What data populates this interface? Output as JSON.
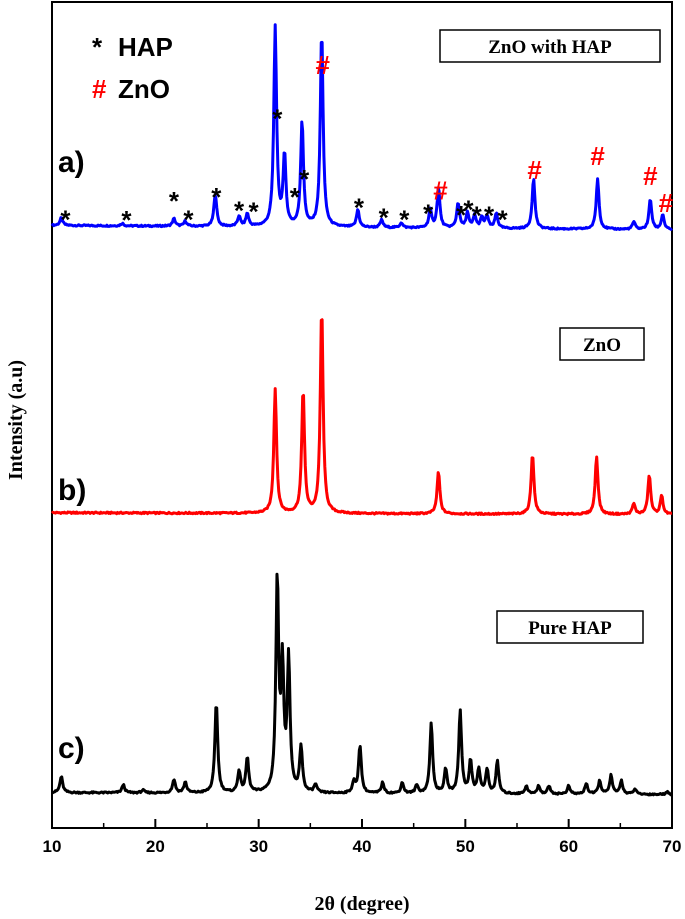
{
  "chart_data": {
    "type": "line",
    "title": "",
    "xlabel": "2θ (degree)",
    "ylabel": "Intensity (a.u)",
    "xlim": [
      10,
      70
    ],
    "x_ticks": [
      10,
      20,
      30,
      40,
      50,
      60,
      70
    ],
    "grid": false,
    "legend": {
      "placement": "top-left",
      "entries": [
        {
          "symbol": "*",
          "label": "HAP",
          "color": "#000000"
        },
        {
          "symbol": "#",
          "label": "ZnO",
          "color": "#ff0000"
        }
      ]
    },
    "series": [
      {
        "name": "ZnO with HAP",
        "panel_label": "a)",
        "color": "#0000ff",
        "baseline": 0.05,
        "peaks": [
          {
            "x": 10.9,
            "h": 0.03
          },
          {
            "x": 16.8,
            "h": 0.01
          },
          {
            "x": 21.8,
            "h": 0.03
          },
          {
            "x": 22.9,
            "h": 0.02
          },
          {
            "x": 25.8,
            "h": 0.13
          },
          {
            "x": 28.1,
            "h": 0.04
          },
          {
            "x": 28.9,
            "h": 0.05
          },
          {
            "x": 31.6,
            "h": 0.79
          },
          {
            "x": 32.5,
            "h": 0.28
          },
          {
            "x": 34.2,
            "h": 0.42
          },
          {
            "x": 36.1,
            "h": 0.78
          },
          {
            "x": 39.6,
            "h": 0.07
          },
          {
            "x": 41.9,
            "h": 0.03
          },
          {
            "x": 43.8,
            "h": 0.02
          },
          {
            "x": 46.6,
            "h": 0.07
          },
          {
            "x": 47.4,
            "h": 0.16
          },
          {
            "x": 49.3,
            "h": 0.1
          },
          {
            "x": 50.2,
            "h": 0.06
          },
          {
            "x": 50.9,
            "h": 0.05
          },
          {
            "x": 51.6,
            "h": 0.04
          },
          {
            "x": 52.1,
            "h": 0.05
          },
          {
            "x": 53.0,
            "h": 0.06
          },
          {
            "x": 56.6,
            "h": 0.2
          },
          {
            "x": 62.8,
            "h": 0.2
          },
          {
            "x": 66.3,
            "h": 0.03
          },
          {
            "x": 67.9,
            "h": 0.12
          },
          {
            "x": 69.1,
            "h": 0.06
          }
        ],
        "box_label": "ZnO with HAP",
        "markers": [
          {
            "x": 11.3,
            "symbol": "*"
          },
          {
            "x": 17.2,
            "symbol": "*"
          },
          {
            "x": 21.8,
            "symbol": "*"
          },
          {
            "x": 23.2,
            "symbol": "*"
          },
          {
            "x": 25.9,
            "symbol": "*"
          },
          {
            "x": 28.1,
            "symbol": "*"
          },
          {
            "x": 29.5,
            "symbol": "*"
          },
          {
            "x": 31.8,
            "symbol": "*"
          },
          {
            "x": 33.5,
            "symbol": "*"
          },
          {
            "x": 34.4,
            "symbol": "*"
          },
          {
            "x": 36.2,
            "symbol": "#"
          },
          {
            "x": 39.7,
            "symbol": "*"
          },
          {
            "x": 42.1,
            "symbol": "*"
          },
          {
            "x": 44.1,
            "symbol": "*"
          },
          {
            "x": 46.4,
            "symbol": "*"
          },
          {
            "x": 47.6,
            "symbol": "#"
          },
          {
            "x": 49.6,
            "symbol": "*"
          },
          {
            "x": 50.3,
            "symbol": "*"
          },
          {
            "x": 51.1,
            "symbol": "*"
          },
          {
            "x": 52.3,
            "symbol": "*"
          },
          {
            "x": 53.6,
            "symbol": "*"
          },
          {
            "x": 56.7,
            "symbol": "#"
          },
          {
            "x": 62.8,
            "symbol": "#"
          },
          {
            "x": 67.9,
            "symbol": "#"
          },
          {
            "x": 69.4,
            "symbol": "#"
          }
        ]
      },
      {
        "name": "ZnO",
        "panel_label": "b)",
        "color": "#ff0000",
        "baseline": 0.02,
        "peaks": [
          {
            "x": 31.6,
            "h": 0.47
          },
          {
            "x": 34.3,
            "h": 0.47
          },
          {
            "x": 36.1,
            "h": 0.78
          },
          {
            "x": 47.4,
            "h": 0.16
          },
          {
            "x": 56.5,
            "h": 0.23
          },
          {
            "x": 62.7,
            "h": 0.22
          },
          {
            "x": 66.3,
            "h": 0.04
          },
          {
            "x": 67.8,
            "h": 0.15
          },
          {
            "x": 69.0,
            "h": 0.07
          }
        ],
        "box_label": "ZnO",
        "markers": []
      },
      {
        "name": "Pure HAP",
        "panel_label": "c)",
        "color": "#000000",
        "baseline": 0.02,
        "peaks": [
          {
            "x": 10.9,
            "h": 0.06
          },
          {
            "x": 16.9,
            "h": 0.03
          },
          {
            "x": 18.8,
            "h": 0.01
          },
          {
            "x": 21.8,
            "h": 0.05
          },
          {
            "x": 22.9,
            "h": 0.04
          },
          {
            "x": 25.9,
            "h": 0.34
          },
          {
            "x": 28.1,
            "h": 0.08
          },
          {
            "x": 28.9,
            "h": 0.13
          },
          {
            "x": 31.8,
            "h": 0.79
          },
          {
            "x": 32.3,
            "h": 0.45
          },
          {
            "x": 32.9,
            "h": 0.49
          },
          {
            "x": 34.1,
            "h": 0.17
          },
          {
            "x": 35.5,
            "h": 0.03
          },
          {
            "x": 39.2,
            "h": 0.04
          },
          {
            "x": 39.8,
            "h": 0.18
          },
          {
            "x": 42.0,
            "h": 0.04
          },
          {
            "x": 43.9,
            "h": 0.04
          },
          {
            "x": 45.3,
            "h": 0.03
          },
          {
            "x": 46.7,
            "h": 0.26
          },
          {
            "x": 48.1,
            "h": 0.09
          },
          {
            "x": 49.5,
            "h": 0.31
          },
          {
            "x": 50.5,
            "h": 0.12
          },
          {
            "x": 51.3,
            "h": 0.09
          },
          {
            "x": 52.1,
            "h": 0.09
          },
          {
            "x": 53.1,
            "h": 0.12
          },
          {
            "x": 55.9,
            "h": 0.03
          },
          {
            "x": 57.1,
            "h": 0.03
          },
          {
            "x": 58.1,
            "h": 0.03
          },
          {
            "x": 60.0,
            "h": 0.03
          },
          {
            "x": 61.7,
            "h": 0.04
          },
          {
            "x": 63.0,
            "h": 0.05
          },
          {
            "x": 64.1,
            "h": 0.07
          },
          {
            "x": 65.1,
            "h": 0.05
          },
          {
            "x": 66.4,
            "h": 0.02
          },
          {
            "x": 69.5,
            "h": 0.01
          }
        ],
        "box_label": "Pure HAP",
        "markers": []
      }
    ]
  }
}
